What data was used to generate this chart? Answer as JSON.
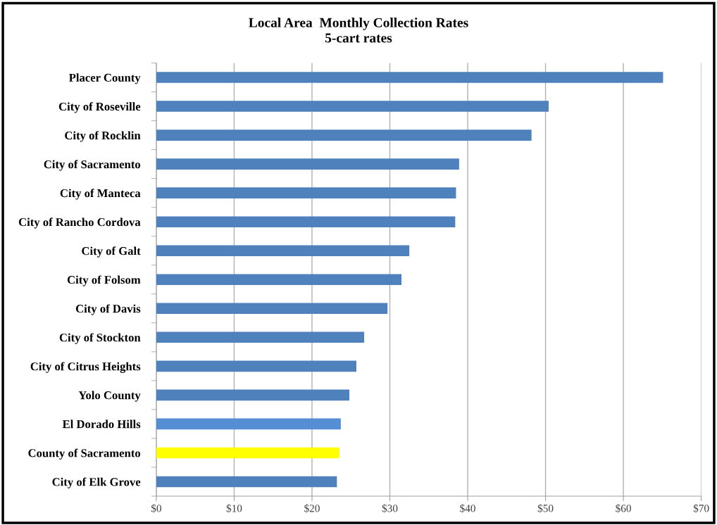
{
  "chart_data": {
    "type": "bar",
    "orientation": "horizontal",
    "title": "Local Area  Monthly Collection Rates\n5-cart rates",
    "categories": [
      "Placer County",
      "City of Roseville",
      "City of Rocklin",
      "City of Sacramento",
      "City of Manteca",
      "City of Rancho Cordova",
      "City of Galt",
      "City of Folsom",
      "City of Davis",
      "City of Stockton",
      "City of Citrus Heights",
      "Yolo County",
      "El Dorado Hills",
      "County of Sacramento",
      "City of Elk Grove"
    ],
    "values": [
      65.1,
      50.4,
      48.2,
      38.9,
      38.5,
      38.4,
      32.5,
      31.5,
      29.7,
      26.7,
      25.7,
      24.8,
      23.7,
      23.5,
      23.2
    ],
    "colors": [
      "#4f81bd",
      "#4f81bd",
      "#4f81bd",
      "#4f81bd",
      "#4f81bd",
      "#4f81bd",
      "#4f81bd",
      "#4f81bd",
      "#4f81bd",
      "#4f81bd",
      "#4f81bd",
      "#4f81bd",
      "#558ed5",
      "#ffff00",
      "#4f81bd"
    ],
    "xlim": [
      0,
      70
    ],
    "xticks": [
      {
        "value": 0,
        "label": "$0"
      },
      {
        "value": 10,
        "label": "$10"
      },
      {
        "value": 20,
        "label": "$20"
      },
      {
        "value": 30,
        "label": "$30"
      },
      {
        "value": 40,
        "label": "$40"
      },
      {
        "value": 50,
        "label": "$50"
      },
      {
        "value": 60,
        "label": "$60"
      },
      {
        "value": 70,
        "label": "$70"
      }
    ],
    "grid": "x",
    "legend": false
  }
}
